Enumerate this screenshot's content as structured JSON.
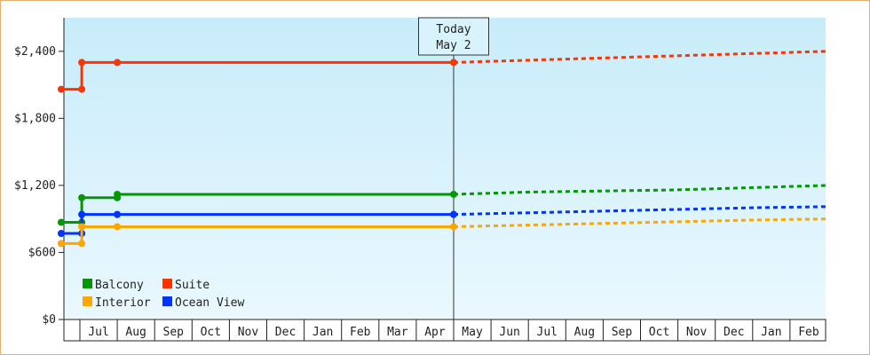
{
  "chart_data": {
    "type": "line",
    "title": "",
    "xlabel": "",
    "ylabel": "",
    "ylim": [
      0,
      2700
    ],
    "y_ticks": [
      {
        "value": 0,
        "label": "$0"
      },
      {
        "value": 600,
        "label": "$600"
      },
      {
        "value": 1200,
        "label": "$1,200"
      },
      {
        "value": 1800,
        "label": "$1,800"
      },
      {
        "value": 2400,
        "label": "$2,400"
      }
    ],
    "x_months": [
      "Jul",
      "Aug",
      "Sep",
      "Oct",
      "Nov",
      "Dec",
      "Jan",
      "Feb",
      "Mar",
      "Apr",
      "May",
      "Jun",
      "Jul",
      "Aug",
      "Sep",
      "Oct",
      "Nov",
      "Dec",
      "Jan",
      "Feb"
    ],
    "today_marker": {
      "line1": "Today",
      "line2": "May 2",
      "x": 10.0
    },
    "legend": {
      "placement": "bottom-left"
    },
    "grid": false,
    "background": {
      "top": "#c8ecfa",
      "bottom": "#eaf8fe"
    },
    "series": [
      {
        "name": "Suite",
        "color": "#ff3300",
        "history": [
          [
            -0.5,
            2060
          ],
          [
            0.05,
            2060
          ],
          [
            0.05,
            2300
          ],
          [
            1.0,
            2300
          ],
          [
            10.0,
            2300
          ]
        ],
        "markers": [
          [
            -0.5,
            2060
          ],
          [
            0.05,
            2060
          ],
          [
            0.05,
            2300
          ],
          [
            1.0,
            2300
          ],
          [
            10.0,
            2300
          ]
        ],
        "forecast": [
          [
            10.0,
            2300
          ],
          [
            12,
            2320
          ],
          [
            14,
            2340
          ],
          [
            16,
            2360
          ],
          [
            18,
            2380
          ],
          [
            20,
            2400
          ]
        ]
      },
      {
        "name": "Balcony",
        "color": "#009900",
        "history": [
          [
            -0.5,
            870
          ],
          [
            0.05,
            870
          ],
          [
            0.05,
            1090
          ],
          [
            1.0,
            1090
          ],
          [
            1.0,
            1120
          ],
          [
            10.0,
            1120
          ]
        ],
        "markers": [
          [
            -0.5,
            870
          ],
          [
            0.05,
            870
          ],
          [
            0.05,
            1090
          ],
          [
            1.0,
            1090
          ],
          [
            1.0,
            1120
          ],
          [
            10.0,
            1120
          ]
        ],
        "forecast": [
          [
            10.0,
            1120
          ],
          [
            12,
            1140
          ],
          [
            14,
            1150
          ],
          [
            16,
            1160
          ],
          [
            18,
            1180
          ],
          [
            20,
            1200
          ]
        ]
      },
      {
        "name": "Ocean View",
        "color": "#0033ff",
        "history": [
          [
            -0.5,
            770
          ],
          [
            0.05,
            770
          ],
          [
            0.05,
            940
          ],
          [
            1.0,
            940
          ],
          [
            10.0,
            940
          ]
        ],
        "markers": [
          [
            -0.5,
            770
          ],
          [
            0.05,
            770
          ],
          [
            0.05,
            940
          ],
          [
            1.0,
            940
          ],
          [
            10.0,
            940
          ]
        ],
        "forecast": [
          [
            10.0,
            940
          ],
          [
            12,
            955
          ],
          [
            14,
            970
          ],
          [
            16,
            985
          ],
          [
            18,
            1000
          ],
          [
            20,
            1010
          ]
        ]
      },
      {
        "name": "Interior",
        "color": "#ffa500",
        "history": [
          [
            -0.5,
            680
          ],
          [
            0.05,
            680
          ],
          [
            0.05,
            830
          ],
          [
            1.0,
            830
          ],
          [
            10.0,
            830
          ]
        ],
        "markers": [
          [
            -0.5,
            680
          ],
          [
            0.05,
            680
          ],
          [
            0.05,
            830
          ],
          [
            1.0,
            830
          ],
          [
            10.0,
            830
          ]
        ],
        "forecast": [
          [
            10.0,
            830
          ],
          [
            12,
            845
          ],
          [
            14,
            860
          ],
          [
            16,
            875
          ],
          [
            18,
            890
          ],
          [
            20,
            900
          ]
        ]
      }
    ]
  },
  "legend_items": [
    {
      "name": "Balcony",
      "color": "#009900"
    },
    {
      "name": "Suite",
      "color": "#ff3300"
    },
    {
      "name": "Interior",
      "color": "#ffa500"
    },
    {
      "name": "Ocean View",
      "color": "#0033ff"
    }
  ]
}
